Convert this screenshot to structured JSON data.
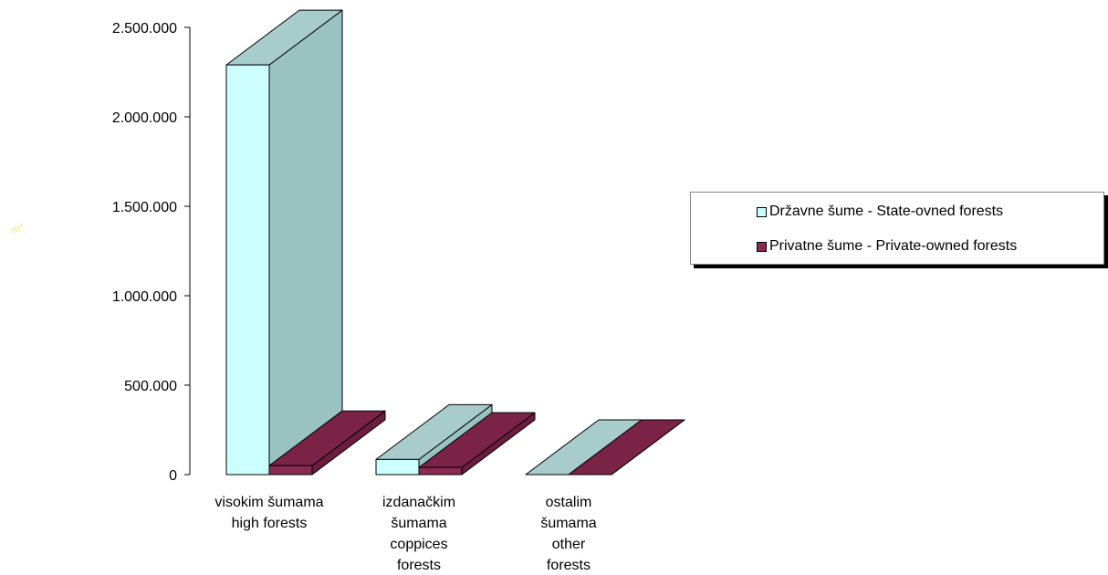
{
  "chart_data": {
    "type": "bar",
    "categories": [
      [
        "visokim šumama",
        "high forests"
      ],
      [
        "izdanačkim",
        "šumama",
        "coppices",
        "forests"
      ],
      [
        "ostalim",
        "šumama",
        "other",
        "forests"
      ]
    ],
    "series": [
      {
        "name": "Državne šume - State-ovned forests",
        "values": [
          2290000,
          85000,
          0
        ],
        "color": "#ccffff",
        "side": "#99c2c0",
        "top": "#a8cccc"
      },
      {
        "name": "Privatne šume - Private-owned forests",
        "values": [
          50000,
          40000,
          0
        ],
        "color": "#8a2a52",
        "side": "#6b1d3f",
        "top": "#7a2347"
      }
    ],
    "ylim": [
      0,
      2500000
    ],
    "yticks": [
      "0",
      "500.000",
      "1.000.000",
      "1.500.000",
      "2.000.000",
      "2.500.000"
    ],
    "ylabel": "m³",
    "legend_position": "right"
  }
}
